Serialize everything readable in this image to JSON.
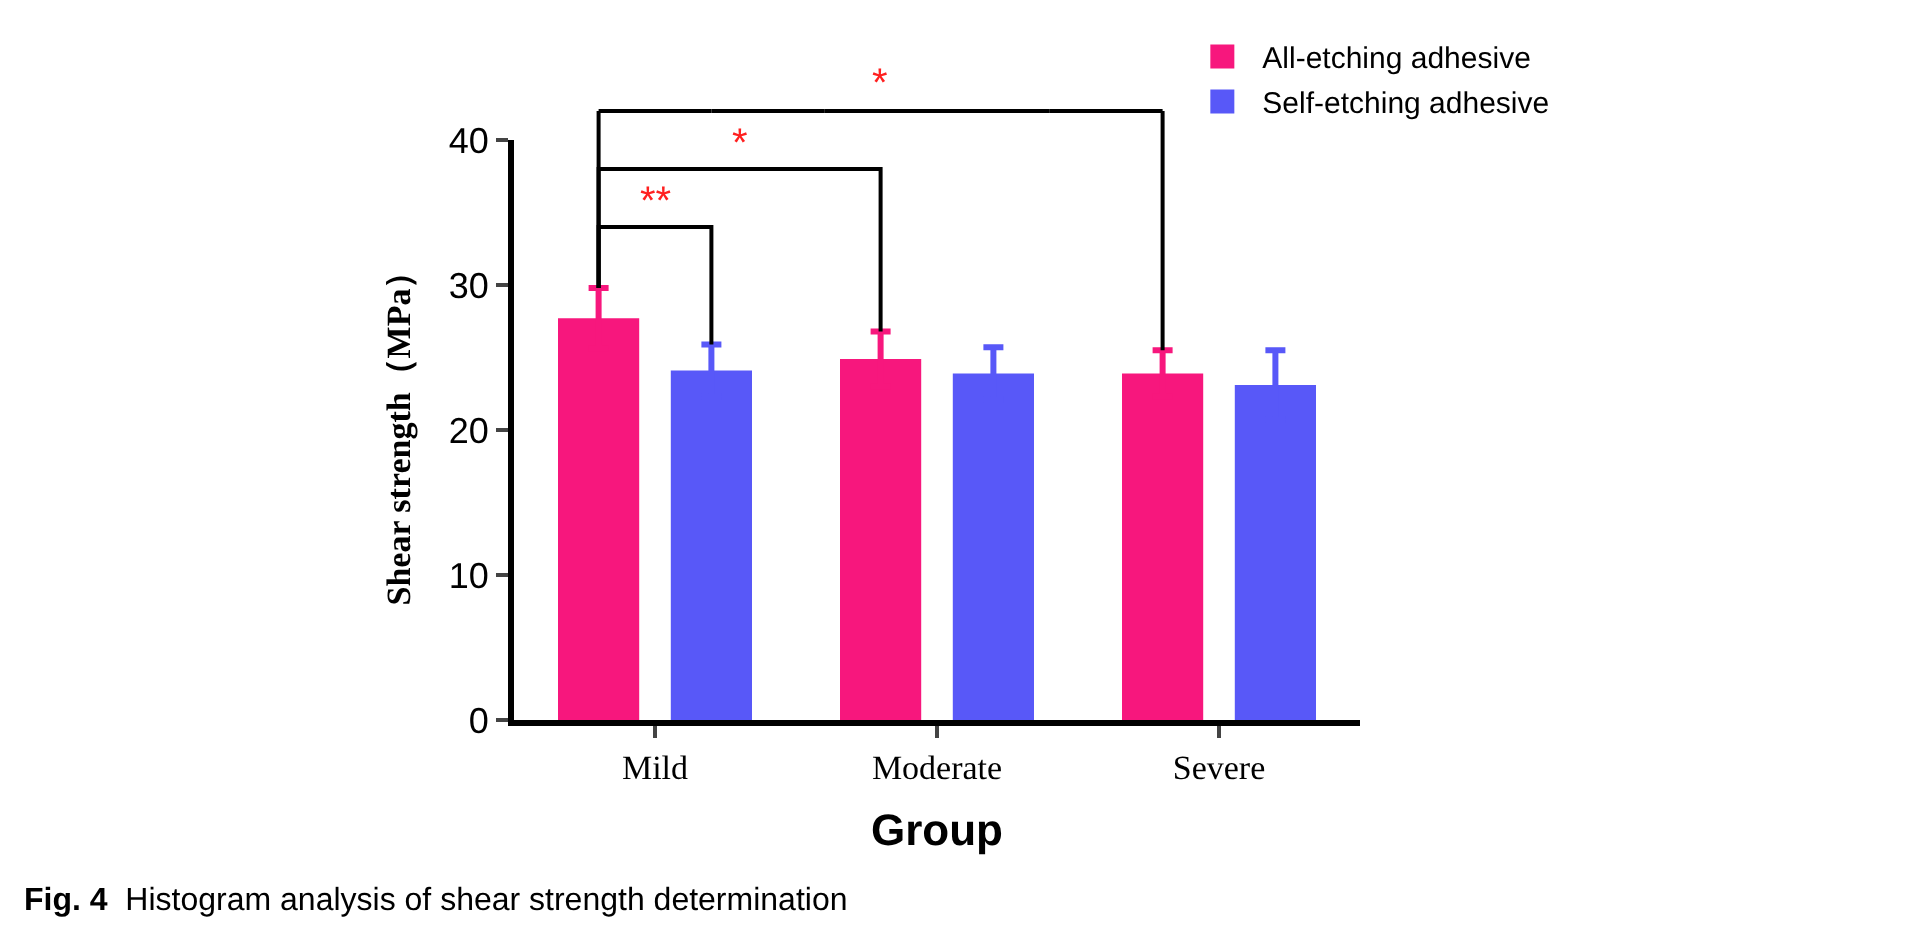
{
  "chart_data": {
    "type": "bar",
    "xlabel": "Group",
    "ylabel": "Shear strength（MPa）",
    "categories": [
      "Mild",
      "Moderate",
      "Severe"
    ],
    "series": [
      {
        "name": "All-etching adhesive",
        "color": "#f7177d",
        "values": [
          27.7,
          24.9,
          23.9
        ],
        "errors": [
          2.1,
          1.9,
          1.6
        ]
      },
      {
        "name": "Self-etching adhesive",
        "color": "#5858f8",
        "values": [
          24.1,
          23.9,
          23.1
        ],
        "errors": [
          1.8,
          1.8,
          2.4
        ]
      }
    ],
    "ylim": [
      0,
      40
    ],
    "yticks": [
      0,
      10,
      20,
      30,
      40
    ],
    "legend": "top right",
    "annotations": [
      "**",
      "*",
      "*",
      "Fig. 4  Histogram analysis of shear strength determination"
    ]
  }
}
